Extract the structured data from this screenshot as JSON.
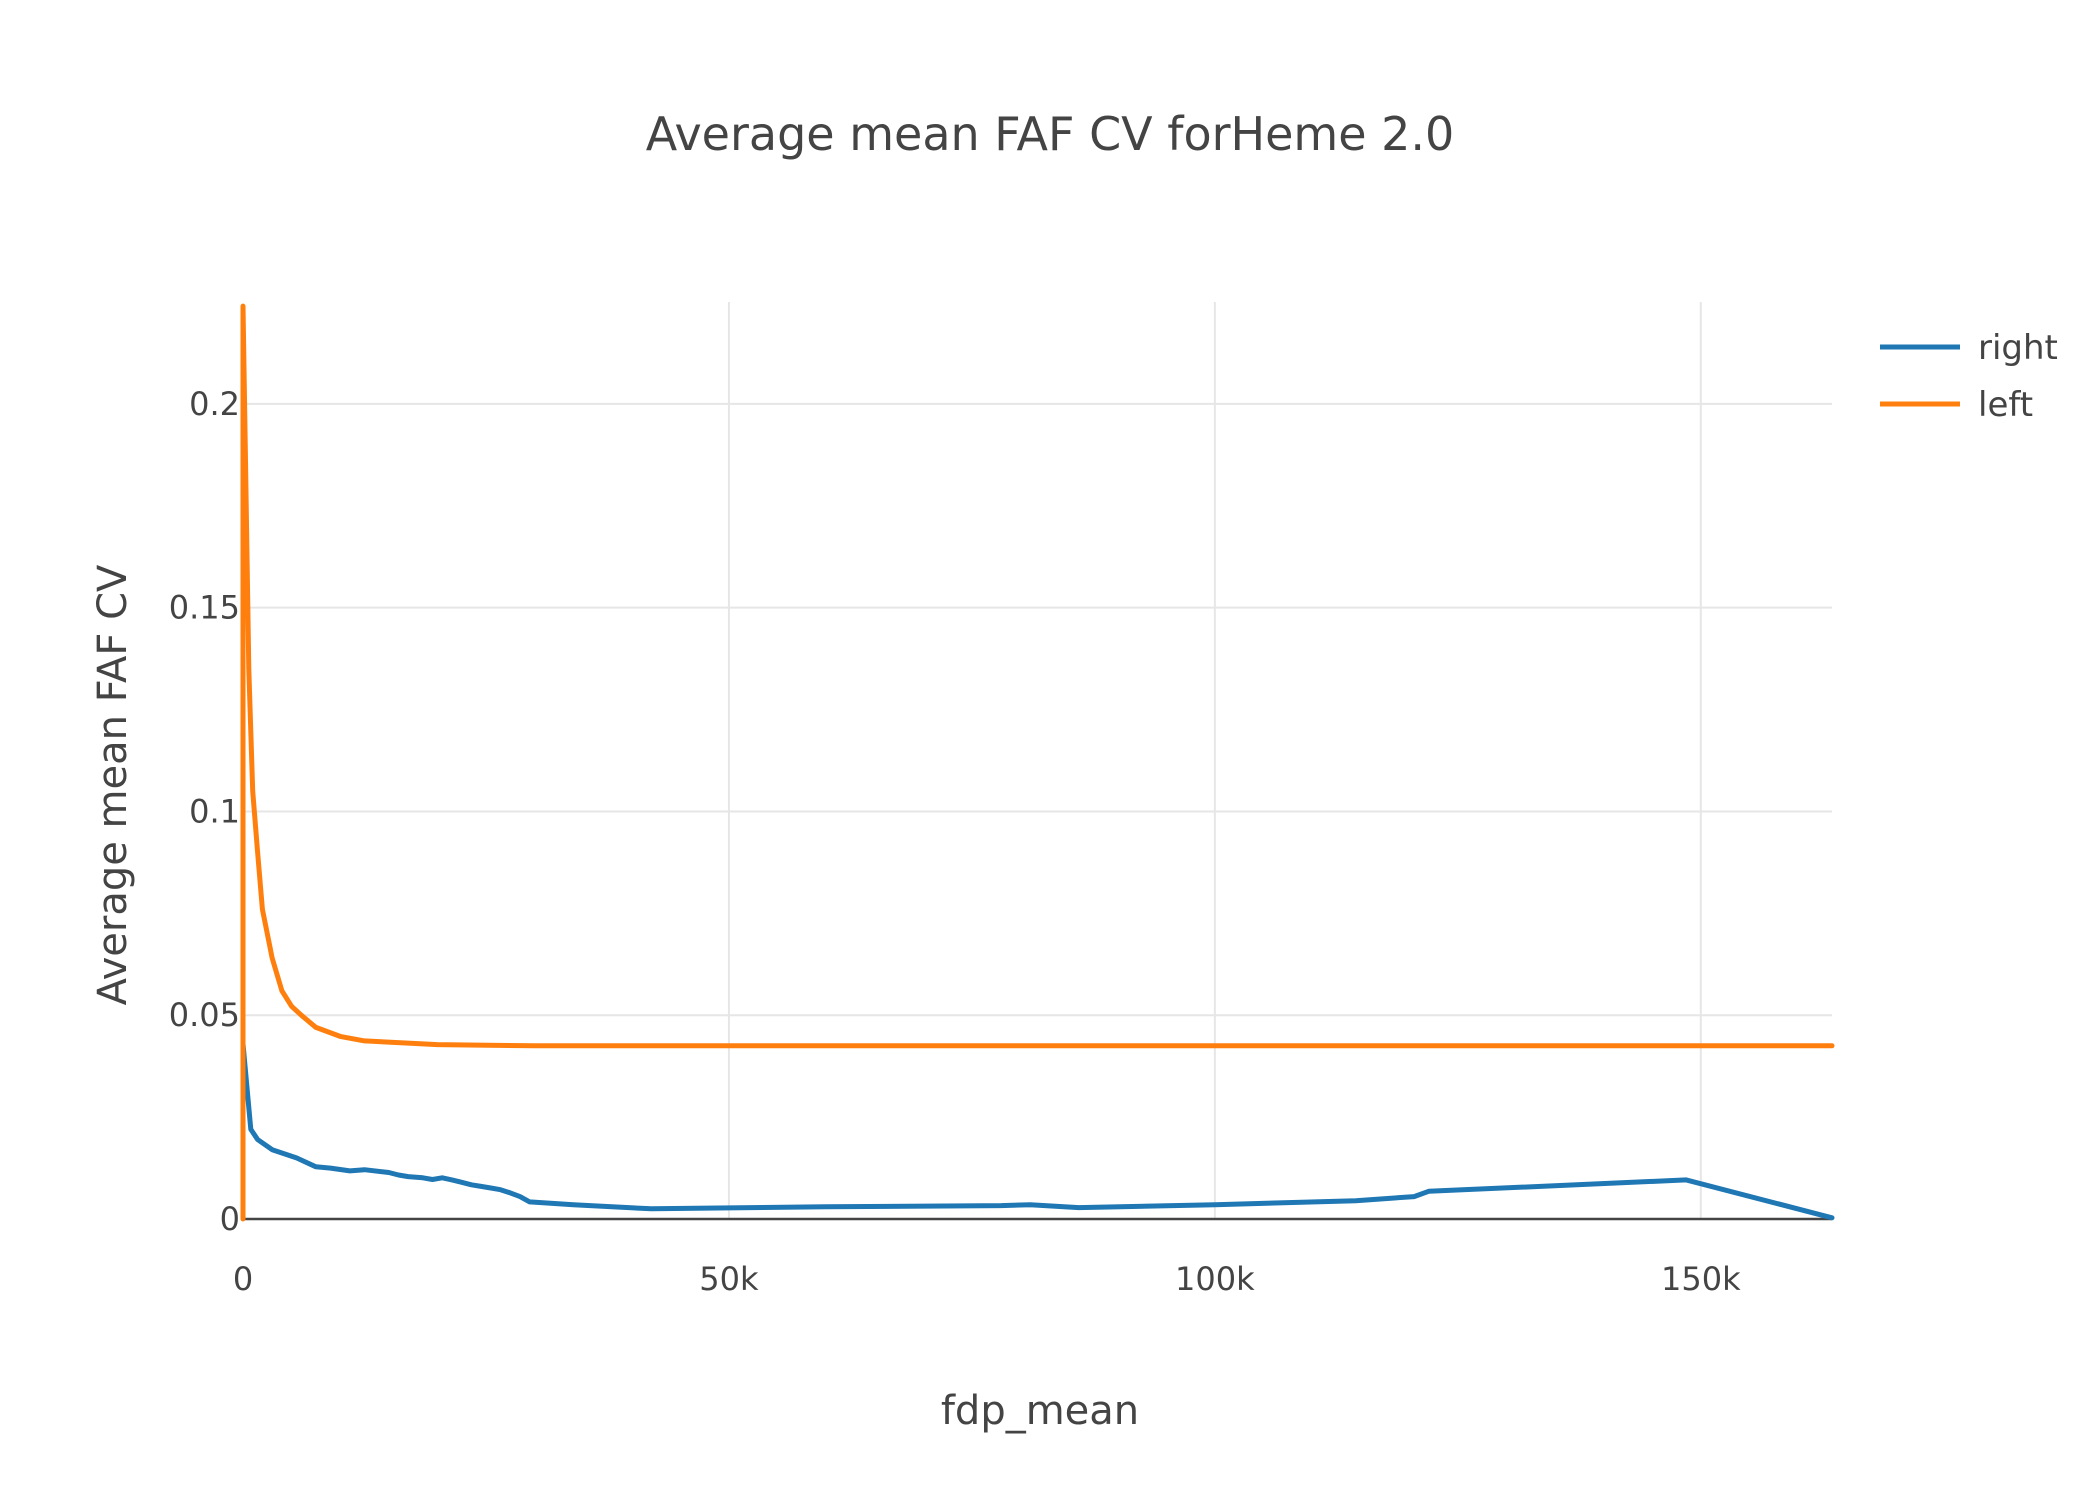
{
  "chart_data": {
    "type": "line",
    "title": "Average mean FAF CV forHeme 2.0",
    "xlabel": "fdp_mean",
    "ylabel": "Average mean FAF CV",
    "xlim": [
      0,
      163500
    ],
    "ylim": [
      0,
      0.225
    ],
    "x_ticks": [
      0,
      50000,
      100000,
      150000
    ],
    "x_tick_labels": [
      "0",
      "50k",
      "100k",
      "150k"
    ],
    "y_ticks": [
      0,
      0.05,
      0.1,
      0.15,
      0.2
    ],
    "y_tick_labels": [
      "0",
      "0.05",
      "0.1",
      "0.15",
      "0.2"
    ],
    "grid": true,
    "legend_position": "top-right",
    "series": [
      {
        "name": "right",
        "color": "#1f77b4",
        "points": [
          [
            0,
            0.043
          ],
          [
            800,
            0.022
          ],
          [
            1500,
            0.0195
          ],
          [
            3000,
            0.017
          ],
          [
            5500,
            0.015
          ],
          [
            7500,
            0.0128
          ],
          [
            9000,
            0.0125
          ],
          [
            11000,
            0.0118
          ],
          [
            12500,
            0.0121
          ],
          [
            15000,
            0.0114
          ],
          [
            16000,
            0.0108
          ],
          [
            17000,
            0.0104
          ],
          [
            18500,
            0.0101
          ],
          [
            19500,
            0.0097
          ],
          [
            20500,
            0.0101
          ],
          [
            21500,
            0.0096
          ],
          [
            22500,
            0.009
          ],
          [
            23500,
            0.0084
          ],
          [
            24500,
            0.008
          ],
          [
            25500,
            0.0076
          ],
          [
            26500,
            0.0072
          ],
          [
            27500,
            0.0064
          ],
          [
            28500,
            0.0055
          ],
          [
            29500,
            0.0042
          ],
          [
            34000,
            0.0035
          ],
          [
            42000,
            0.0025
          ],
          [
            60000,
            0.003
          ],
          [
            78000,
            0.0033
          ],
          [
            81000,
            0.0035
          ],
          [
            86000,
            0.0028
          ],
          [
            100000,
            0.0035
          ],
          [
            114500,
            0.0045
          ],
          [
            120500,
            0.0055
          ],
          [
            122000,
            0.0068
          ],
          [
            148500,
            0.0096
          ],
          [
            163500,
            0.0003
          ]
        ]
      },
      {
        "name": "left",
        "color": "#ff7f0e",
        "points": [
          [
            0,
            0.0
          ],
          [
            0,
            0.224
          ],
          [
            300,
            0.18
          ],
          [
            600,
            0.135
          ],
          [
            1000,
            0.105
          ],
          [
            1500,
            0.09
          ],
          [
            2000,
            0.076
          ],
          [
            3000,
            0.064
          ],
          [
            4000,
            0.056
          ],
          [
            5000,
            0.0522
          ],
          [
            6000,
            0.05
          ],
          [
            7500,
            0.047
          ],
          [
            10000,
            0.0448
          ],
          [
            12500,
            0.0437
          ],
          [
            20000,
            0.0428
          ],
          [
            30000,
            0.0425
          ],
          [
            40000,
            0.0425
          ],
          [
            163500,
            0.0425
          ]
        ]
      }
    ]
  }
}
